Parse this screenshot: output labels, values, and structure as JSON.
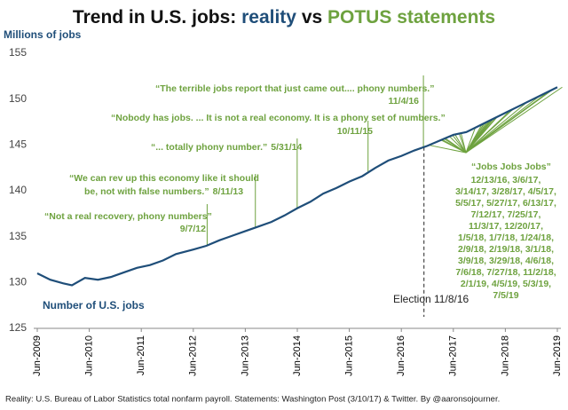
{
  "chart_data": {
    "type": "line",
    "title": [
      {
        "text": "Trend in U.S. jobs: ",
        "color": "#111111"
      },
      {
        "text": "reality",
        "color": "#1f4e79"
      },
      {
        "text": " vs ",
        "color": "#111111"
      },
      {
        "text": "POTUS statements",
        "color": "#6ea23f"
      }
    ],
    "y_label": "Millions of jobs",
    "x": [
      "Jun-2009",
      "Sep-2009",
      "Dec-2009",
      "Feb-2010",
      "May-2010",
      "Aug-2010",
      "Nov-2010",
      "Feb-2011",
      "May-2011",
      "Aug-2011",
      "Nov-2011",
      "Feb-2012",
      "Jun-2012",
      "Sep-2012",
      "Dec-2012",
      "Mar-2013",
      "Jun-2013",
      "Sep-2013",
      "Dec-2013",
      "Mar-2014",
      "Jun-2014",
      "Sep-2014",
      "Dec-2014",
      "Mar-2015",
      "Jun-2015",
      "Sep-2015",
      "Dec-2015",
      "Mar-2016",
      "Jun-2016",
      "Sep-2016",
      "Dec-2016",
      "Mar-2017",
      "Jun-2017",
      "Sep-2017",
      "Dec-2017",
      "Mar-2018",
      "Jun-2018",
      "Sep-2018",
      "Dec-2018",
      "Mar-2019",
      "Jun-2019"
    ],
    "series": [
      {
        "name": "Number of U.S. jobs",
        "color": "#1f4e79",
        "values": [
          131.0,
          130.3,
          129.9,
          129.7,
          130.5,
          130.3,
          130.6,
          131.1,
          131.6,
          131.9,
          132.4,
          133.1,
          133.6,
          134.0,
          134.6,
          135.1,
          135.6,
          136.1,
          136.6,
          137.3,
          138.1,
          138.8,
          139.7,
          140.3,
          141.0,
          141.6,
          142.5,
          143.3,
          143.8,
          144.4,
          144.9,
          145.5,
          146.1,
          146.4,
          147.1,
          147.8,
          148.5,
          149.2,
          149.9,
          150.6,
          151.3
        ]
      }
    ],
    "xlim": [
      "Jun-2009",
      "Jun-2019"
    ],
    "xticks": [
      "Jun-2009",
      "Jun-2010",
      "Jun-2011",
      "Jun-2012",
      "Jun-2013",
      "Jun-2014",
      "Jun-2015",
      "Jun-2016",
      "Jun-2017",
      "Jun-2018",
      "Jun-2019"
    ],
    "ylim": [
      125,
      155
    ],
    "yticks": [
      125,
      130,
      135,
      140,
      145,
      150,
      155
    ],
    "annotation_color": "#6ea23f",
    "annotations": [
      {
        "lines": [
          "“Not a real recovery, phony numbers”"
        ],
        "date": "9/7/12"
      },
      {
        "lines": [
          "“We can rev up this economy like it should",
          "be, not with false numbers.”"
        ],
        "date": "8/11/13"
      },
      {
        "lines": [
          "“... totally phony number.”"
        ],
        "date": "5/31/14"
      },
      {
        "lines": [
          "“Nobody has jobs. ... It is not a real economy. It is a phony set of numbers.”"
        ],
        "date": "10/11/15"
      },
      {
        "lines": [
          "“The terrible jobs report that just came out.... phony numbers.”"
        ],
        "date": "11/4/16"
      }
    ],
    "jobs_statement": {
      "title": "“Jobs Jobs Jobs”",
      "date_lines": [
        "12/13/16, 3/6/17,",
        "3/14/17, 3/28/17, 4/5/17,",
        "5/5/17, 5/27/17, 6/13/17,",
        "7/12/17, 7/25/17,",
        "11/3/17, 12/20/17,",
        "1/5/18, 1/7/18, 1/24/18,",
        "2/9/18, 2/19/18, 3/1/18,",
        "3/9/18, 3/29/18, 4/6/18,",
        "7/6/18, 7/27/18, 11/2/18,",
        "2/1/19, 4/5/19, 5/3/19,",
        "7/5/19"
      ]
    },
    "election_label": "Election 11/8/16",
    "source": "Reality: U.S. Bureau of Labor Statistics total nonfarm payroll. Statements: Washington Post (3/10/17) & Twitter. By @aaronsojourner."
  }
}
